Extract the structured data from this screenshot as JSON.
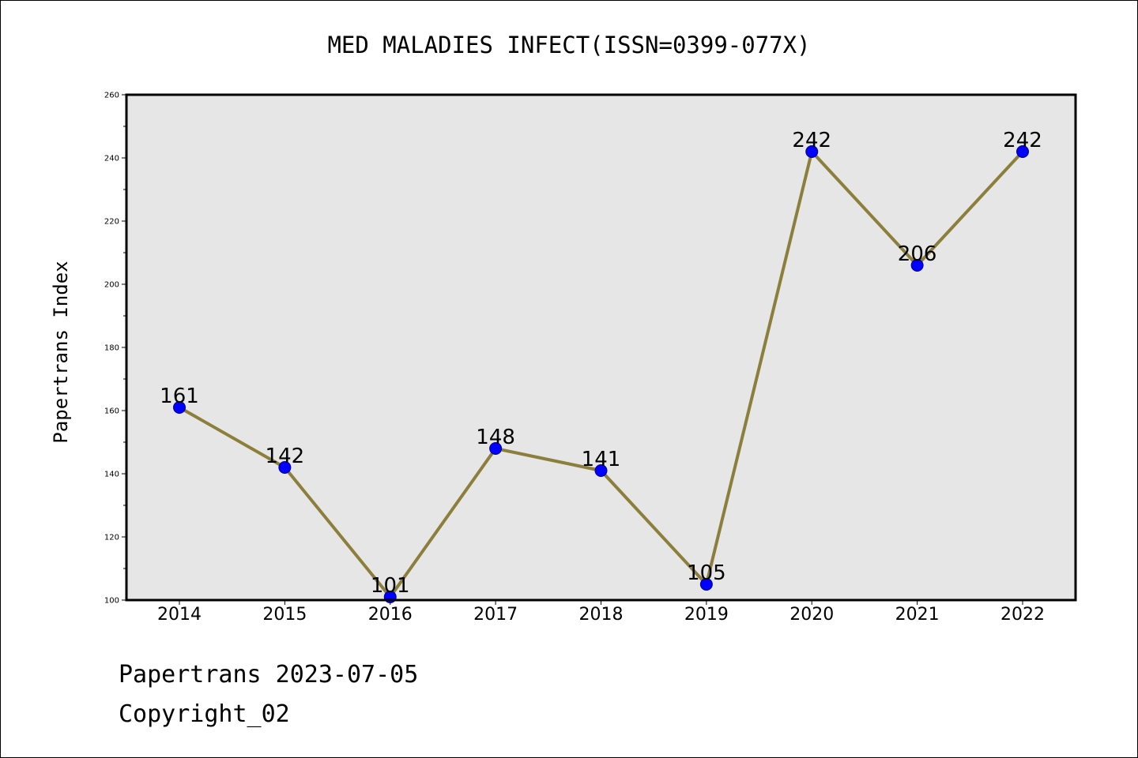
{
  "chart_data": {
    "type": "line",
    "title": "MED MALADIES INFECT(ISSN=0399-077X)",
    "xlabel": "",
    "ylabel": "Papertrans Index",
    "categories": [
      "2014",
      "2015",
      "2016",
      "2017",
      "2018",
      "2019",
      "2020",
      "2021",
      "2022"
    ],
    "series": [
      {
        "values": [
          161,
          142,
          101,
          148,
          141,
          105,
          242,
          206,
          242
        ]
      }
    ],
    "ylim": [
      100,
      260
    ],
    "yticks": [
      100,
      120,
      140,
      160,
      180,
      200,
      220,
      240,
      260
    ],
    "data_labels": [
      "161",
      "142",
      "101",
      "148",
      "141",
      "105",
      "242",
      "206",
      "242"
    ],
    "grid": false,
    "legend": "none",
    "colors": {
      "line": "#8c7e3b",
      "marker_fill": "#0000ff",
      "marker_edge": "#00008b",
      "plot_background": "#e6e6e6",
      "frame": "#000000"
    }
  },
  "footer": {
    "line1": "Papertrans 2023-07-05",
    "line2": "Copyright_02"
  }
}
